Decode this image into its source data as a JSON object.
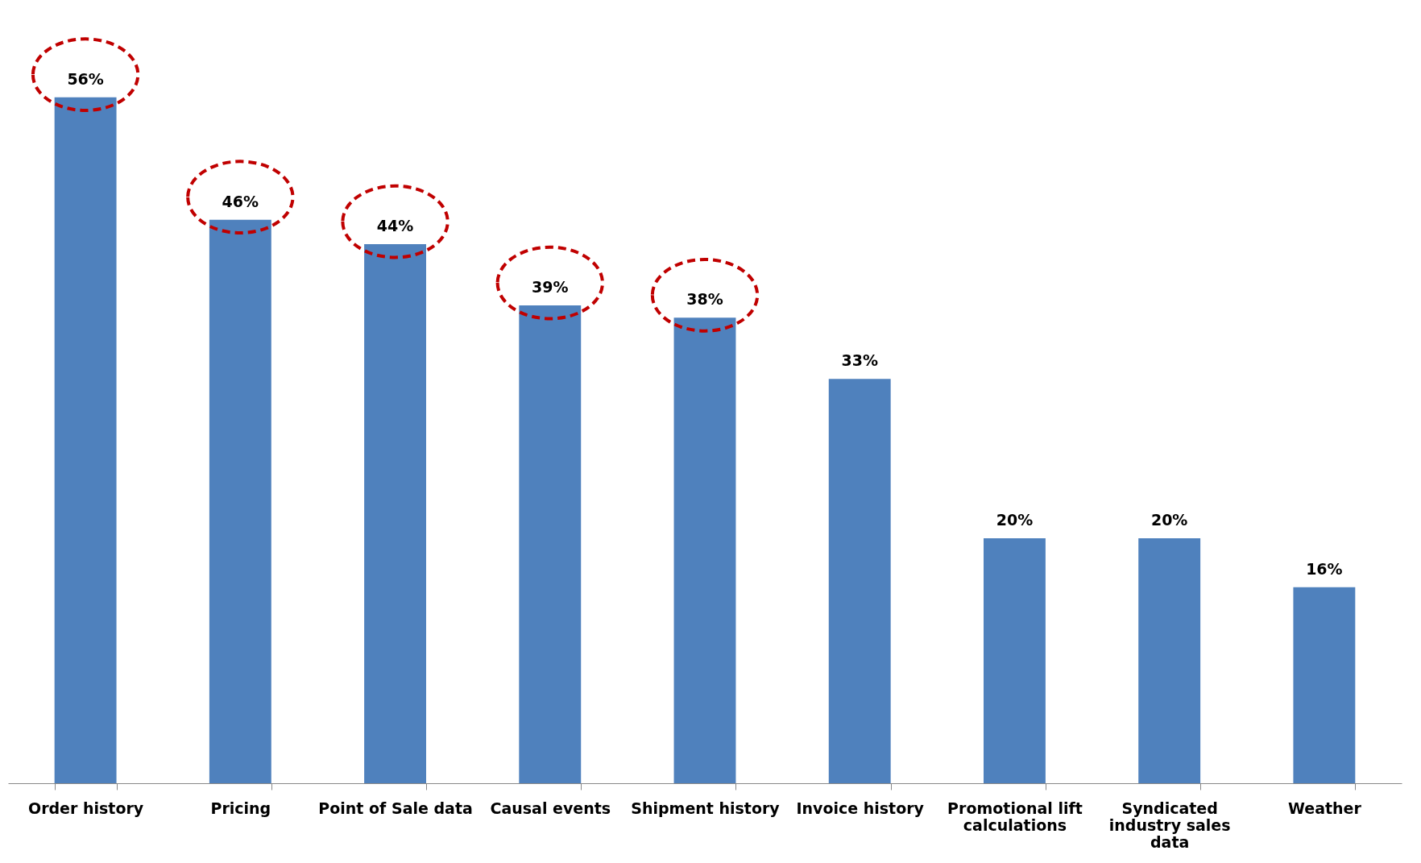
{
  "chart_data": {
    "type": "bar",
    "categories": [
      "Order history",
      "Pricing",
      "Point of Sale data",
      "Causal events",
      "Shipment history",
      "Invoice history",
      "Promotional lift calculations",
      "Syndicated industry sales data",
      "Weather"
    ],
    "values": [
      56,
      46,
      44,
      39,
      38,
      33,
      20,
      20,
      16
    ],
    "value_labels": [
      "56%",
      "46%",
      "44%",
      "39%",
      "38%",
      "33%",
      "20%",
      "20%",
      "16%"
    ],
    "color": "#4f81bd",
    "grid": false
  }
}
